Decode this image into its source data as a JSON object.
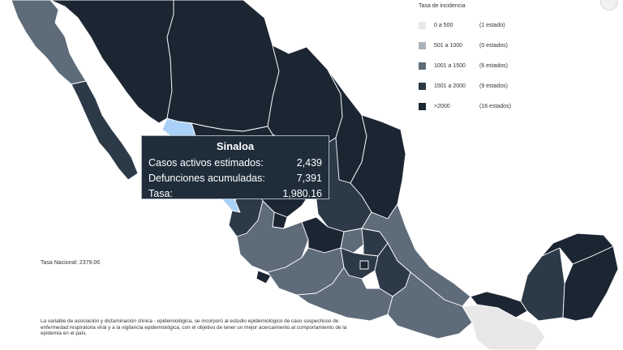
{
  "legend": {
    "title": "Tasa de incidencia",
    "items": [
      {
        "range": "0 a 500",
        "count": "(1 estado)",
        "color": "#e8e8e8"
      },
      {
        "range": "501 a 1000",
        "count": "(0 estados)",
        "color": "#a9b1ba"
      },
      {
        "range": "1001 a 1500",
        "count": "(6 estados)",
        "color": "#5e6b79"
      },
      {
        "range": "1501 a 2000",
        "count": "(9 estados)",
        "color": "#2c3a48"
      },
      {
        "range": ">2000",
        "count": "(16 estados)",
        "color": "#1c2633"
      }
    ]
  },
  "tooltip": {
    "title": "Sinaloa",
    "rows": [
      {
        "label": "Casos activos estimados:",
        "value": "2,439"
      },
      {
        "label": "Defunciones acumuladas:",
        "value": "7,391"
      },
      {
        "label": "Tasa:",
        "value": "1,980.16"
      }
    ]
  },
  "tasa_nacional": "Tasa Nacional: 2379.06",
  "footnote": "La variable de asociación y dictaminación clínica - epidemiológica, se incorporó al estudio epidemiológico de caso sospechoso de enfermedad respiratoria viral y a la vigilancia epidemiológica, con el objetivo de tener un mejor acercamiento al comportamiento de la epidemia en el país.",
  "colors": {
    "highlight": "#a9d1f7",
    "state_dark": "#1c2633",
    "state_mid": "#2c3a48",
    "state_light": "#5e6b79",
    "state_lowest": "#e8e8e8",
    "border": "#ffffff"
  }
}
